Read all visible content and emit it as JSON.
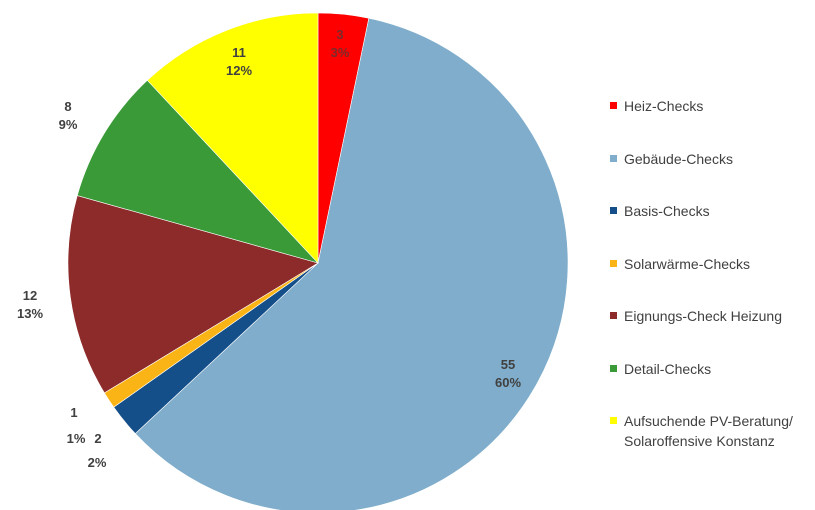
{
  "chart_data": {
    "type": "pie",
    "title": "",
    "start_angle_deg": 0,
    "direction": "clockwise",
    "slices": [
      {
        "name": "Heiz-Checks",
        "value": 3,
        "percent": "3%",
        "color": "#ff0000"
      },
      {
        "name": "Gebäude-Checks",
        "value": 55,
        "percent": "60%",
        "color": "#7fadcb"
      },
      {
        "name": "Basis-Checks",
        "value": 2,
        "percent": "2%",
        "color": "#154f8a"
      },
      {
        "name": "Solarwärme-Checks",
        "value": 1,
        "percent": "1%",
        "color": "#fbb416"
      },
      {
        "name": "Eignungs-Check Heizung",
        "value": 12,
        "percent": "13%",
        "color": "#8d2a2a"
      },
      {
        "name": "Detail-Checks",
        "value": 8,
        "percent": "9%",
        "color": "#3a9a37"
      },
      {
        "name": "Aufsuchende PV-Beratung/\nSolaroffensive Konstanz",
        "value": 11,
        "percent": "12%",
        "color": "#ffff00"
      }
    ],
    "legend_position": "right"
  }
}
